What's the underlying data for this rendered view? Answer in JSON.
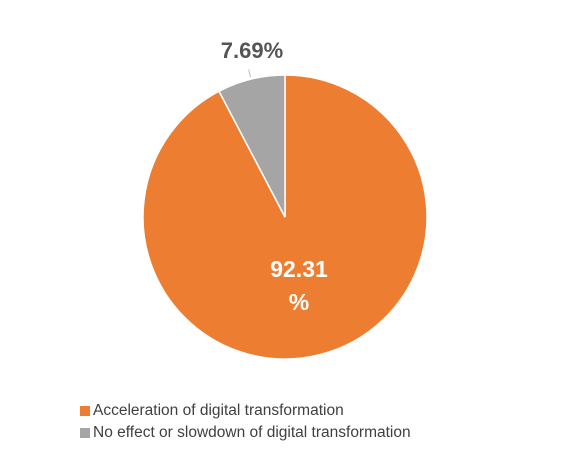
{
  "chart_data": {
    "type": "pie",
    "slices": [
      {
        "name": "Acceleration of digital transformation",
        "value": 92.31,
        "label_line1": "92.31",
        "label_line2": "%",
        "color": "#ED7D31"
      },
      {
        "name": "No effect or slowdown of digital transformation",
        "value": 7.69,
        "label": "7.69%",
        "color": "#A5A5A5"
      }
    ],
    "legend_position": "bottom"
  }
}
